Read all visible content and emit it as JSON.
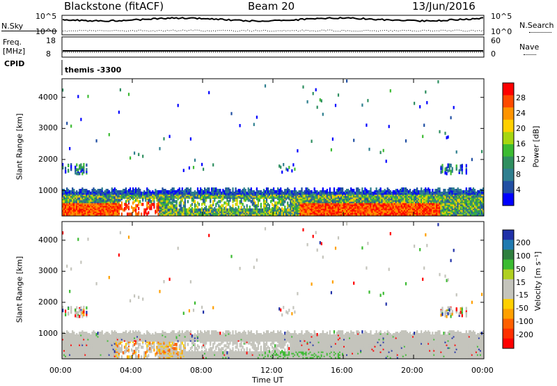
{
  "header": {
    "station": "Blackstone (fitACF)",
    "beam": "Beam 20",
    "date": "13/Jun/2016"
  },
  "top_panel": {
    "left_label": "N.Sky",
    "left_ticks": [
      "10^5",
      "10^0"
    ],
    "right_label": "N.Search",
    "right_ticks": [
      "10^5",
      "10^0"
    ]
  },
  "freq_panel": {
    "left_label_1": "Freq.",
    "left_label_2": "[MHz]",
    "left_ticks": [
      "18",
      "8"
    ],
    "right_label": "Nave",
    "right_ticks": [
      "60",
      "0"
    ]
  },
  "cpid_panel": {
    "label": "CPID",
    "value": "themis -3300"
  },
  "chart_data": [
    {
      "type": "heatmap",
      "name": "power",
      "ylabel": "Slant Range [km]",
      "yticks": [
        1000,
        2000,
        3000,
        4000
      ],
      "ylim": [
        180,
        4600
      ],
      "xlim_hours": [
        0,
        24
      ],
      "colorbar": {
        "label": "Power [dB]",
        "ticks": [
          "28",
          "24",
          "20",
          "16",
          "12",
          "8",
          "4"
        ],
        "colors": [
          "#ff0000",
          "#ff4a00",
          "#ff9400",
          "#ffd000",
          "#a6d610",
          "#3cbb32",
          "#2f8f60",
          "#2f7f8f",
          "#214fa3",
          "#0000ff"
        ]
      }
    },
    {
      "type": "heatmap",
      "name": "velocity",
      "ylabel": "Slant Range [km]",
      "yticks": [
        1000,
        2000,
        3000,
        4000
      ],
      "ylim": [
        180,
        4600
      ],
      "xlim_hours": [
        0,
        24
      ],
      "colorbar": {
        "label": "Velocity [m s⁻¹]",
        "ticks": [
          "200",
          "100",
          "50",
          "15",
          "-15",
          "-50",
          "-100",
          "-200"
        ],
        "colors": [
          "#2031a8",
          "#207ab0",
          "#2f7f3f",
          "#3cbb32",
          "#b0d020",
          "#c4c4bc",
          "#c4c4bc",
          "#ffd000",
          "#ffa000",
          "#ff6000",
          "#ff3000",
          "#ff0000"
        ]
      }
    }
  ],
  "x_axis": {
    "ticks": [
      "00:00",
      "04:00",
      "08:00",
      "12:00",
      "16:00",
      "20:00",
      "00:00"
    ],
    "label": "Time UT"
  }
}
